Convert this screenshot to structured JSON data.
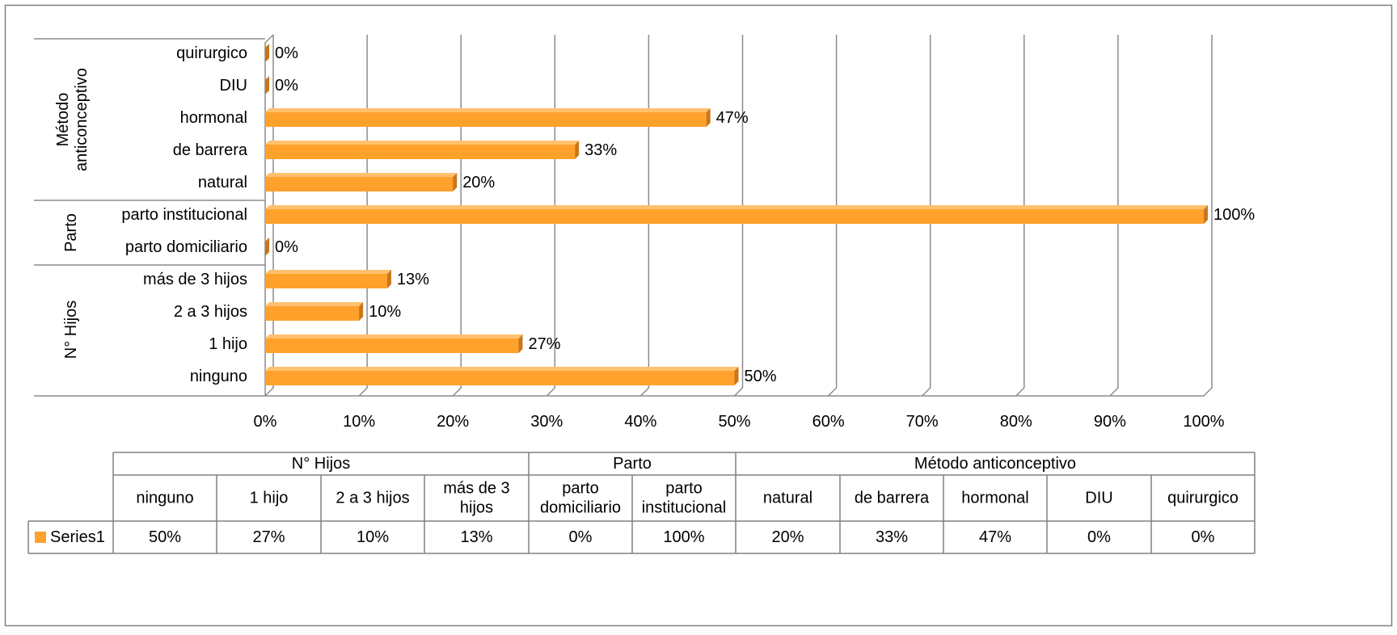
{
  "chart_data": {
    "type": "bar",
    "orientation": "horizontal",
    "style": "3d",
    "groups": [
      {
        "name": "N° Hijos",
        "categories": [
          "ninguno",
          "1 hijo",
          "2 a 3 hijos",
          "más de 3 hijos"
        ]
      },
      {
        "name": "Parto",
        "categories": [
          "parto domiciliario",
          "parto institucional"
        ]
      },
      {
        "name": "Método anticonceptivo",
        "categories": [
          "natural",
          "de barrera",
          "hormonal",
          "DIU",
          "quirurgico"
        ]
      }
    ],
    "categories": [
      "ninguno",
      "1 hijo",
      "2 a 3 hijos",
      "más de 3 hijos",
      "parto domiciliario",
      "parto institucional",
      "natural",
      "de barrera",
      "hormonal",
      "DIU",
      "quirurgico"
    ],
    "series": [
      {
        "name": "Series1",
        "values": [
          50,
          27,
          10,
          13,
          0,
          100,
          20,
          33,
          47,
          0,
          0
        ],
        "color": "#FFA12B"
      }
    ],
    "value_labels": [
      "50%",
      "27%",
      "10%",
      "13%",
      "0%",
      "100%",
      "20%",
      "33%",
      "47%",
      "0%",
      "0%"
    ],
    "table_row_labels": [
      [
        "ninguno"
      ],
      [
        "1 hijo"
      ],
      [
        "2 a 3 hijos"
      ],
      [
        "más de 3",
        "hijos"
      ],
      [
        "parto",
        "domiciliario"
      ],
      [
        "parto",
        "institucional"
      ],
      [
        "natural"
      ],
      [
        "de barrera"
      ],
      [
        "hormonal"
      ],
      [
        "DIU"
      ],
      [
        "quirurgico"
      ]
    ],
    "xlim": [
      0,
      100
    ],
    "xticks": [
      "0%",
      "10%",
      "20%",
      "30%",
      "40%",
      "50%",
      "60%",
      "70%",
      "80%",
      "90%",
      "100%"
    ],
    "grid": true,
    "legend": "data-table",
    "colors": {
      "bar": "#FFA12B",
      "bar_side": "#C9761A",
      "grid": "#8C8C8C",
      "border": "#808080"
    }
  }
}
